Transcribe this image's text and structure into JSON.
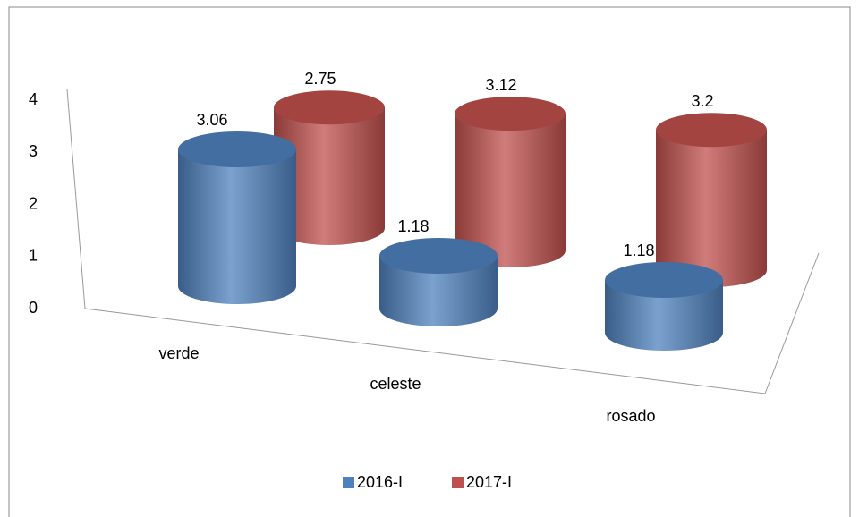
{
  "chart_data": {
    "type": "bar3d",
    "categories": [
      "verde",
      "celeste",
      "rosado"
    ],
    "series": [
      {
        "name": "2016-I",
        "color": "#4f81bd",
        "values": [
          3.06,
          1.18,
          1.18
        ]
      },
      {
        "name": "2017-I",
        "color": "#c0504d",
        "values": [
          2.75,
          3.12,
          3.2
        ]
      }
    ],
    "ylim": [
      0,
      4
    ],
    "yticks": [
      0,
      1,
      2,
      3,
      4
    ],
    "grid": false,
    "legend": "bottom"
  }
}
